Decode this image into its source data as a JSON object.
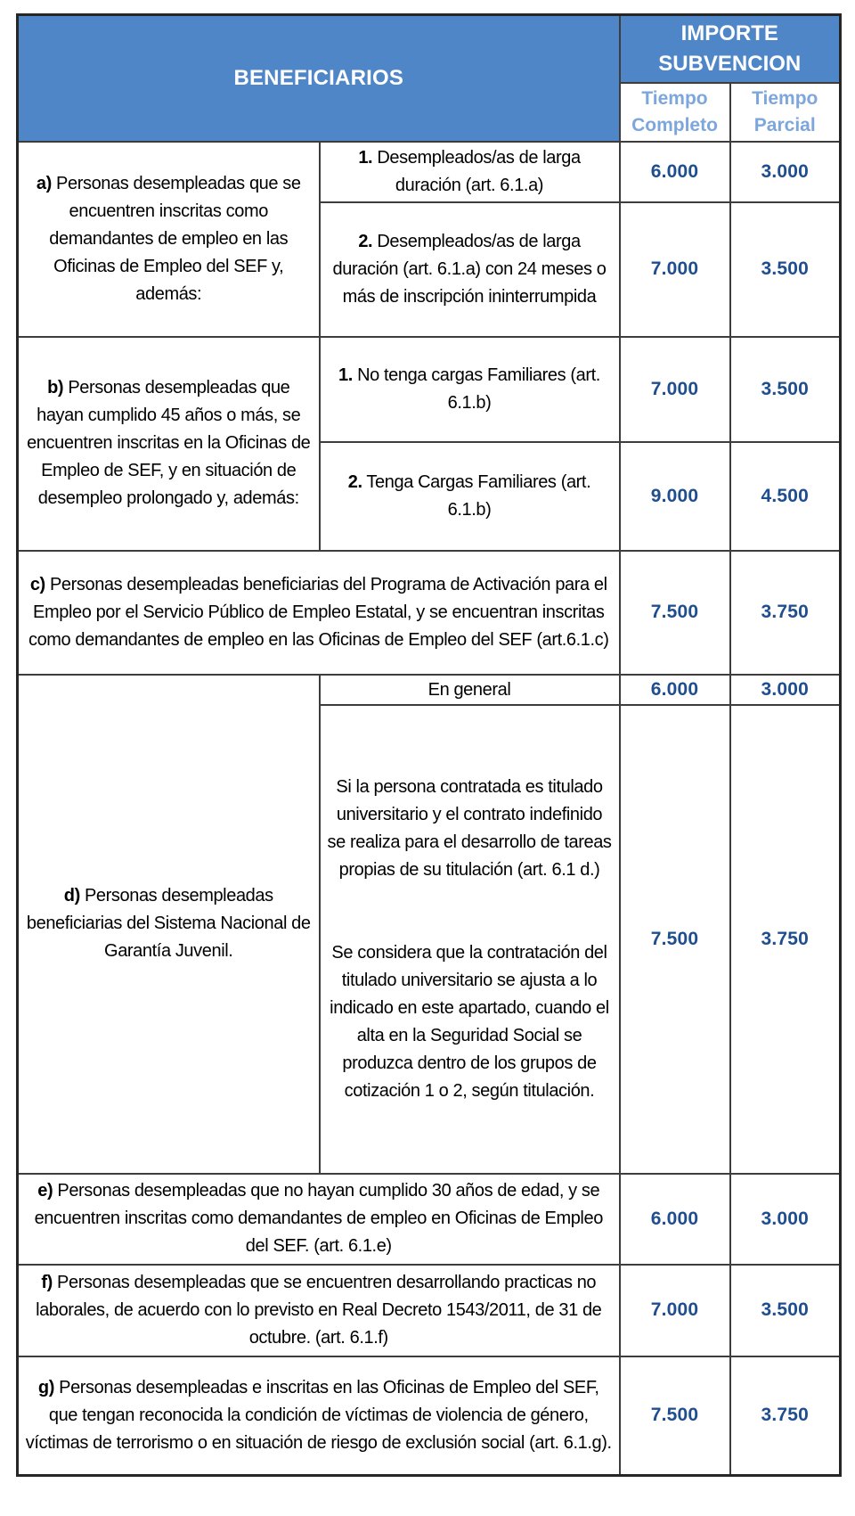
{
  "colors": {
    "header_blue_bg": "#4E86C8",
    "header_text_white": "#ffffff",
    "subheader_text_blue": "#7DA7DC",
    "amount_navy": "#1F4E8F",
    "body_text": "#000000",
    "border_outer": "#262626",
    "border_inner": "#3d3d3d"
  },
  "header": {
    "beneficiarios": "BENEFICIARIOS",
    "importe_subvencion": "IMPORTE SUBVENCION",
    "tiempo_completo": "Tiempo Completo",
    "tiempo_parcial": "Tiempo Parcial"
  },
  "sections": {
    "a": {
      "label": "a)",
      "text": " Personas desempleadas que se encuentren inscritas como demandantes de empleo en las Oficinas de Empleo del SEF y, además:",
      "items": [
        {
          "num": "1.",
          "text": " Desempleados/as de larga duración (art. 6.1.a)",
          "completo": "6.000",
          "parcial": "3.000"
        },
        {
          "num": "2.",
          "text": " Desempleados/as de larga duración (art. 6.1.a) con 24 meses o más de inscripción ininterrumpida",
          "completo": "7.000",
          "parcial": "3.500"
        }
      ]
    },
    "b": {
      "label": "b)",
      "text": " Personas desempleadas que hayan cumplido 45 años o más, se encuentren inscritas en la Oficinas de Empleo de SEF, y en situación de desempleo prolongado y, además:",
      "items": [
        {
          "num": "1.",
          "text": " No tenga cargas Familiares (art. 6.1.b)",
          "completo": "7.000",
          "parcial": "3.500"
        },
        {
          "num": "2.",
          "text": " Tenga Cargas Familiares  (art. 6.1.b)",
          "completo": "9.000",
          "parcial": "4.500"
        }
      ]
    },
    "c": {
      "label": "c)",
      "text": " Personas desempleadas beneficiarias del Programa de Activación para el Empleo por el Servicio Público de Empleo Estatal, y se encuentran inscritas como demandantes de empleo en las Oficinas de Empleo del SEF (art.6.1.c)",
      "completo": "7.500",
      "parcial": "3.750"
    },
    "d": {
      "label": "d)",
      "text": " Personas desempleadas beneficiarias del Sistema Nacional de Garantía Juvenil.",
      "items": [
        {
          "text": "En general",
          "completo": "6.000",
          "parcial": "3.000"
        },
        {
          "paragraphs": [
            "Si la persona contratada es titulado universitario y el contrato indefinido se realiza para el desarrollo de tareas propias de su titulación (art. 6.1 d.)",
            "Se considera que la contratación del titulado universitario se ajusta a lo indicado en este apartado, cuando el alta en la Seguridad Social se produzca dentro de los grupos de cotización 1 o 2, según titulación."
          ],
          "completo": "7.500",
          "parcial": "3.750"
        }
      ]
    },
    "e": {
      "label": "e)",
      "text": " Personas desempleadas que no hayan cumplido 30 años de edad, y se encuentren inscritas como demandantes de empleo en Oficinas de Empleo del SEF. (art. 6.1.e)",
      "completo": "6.000",
      "parcial": "3.000"
    },
    "f": {
      "label": "f)",
      "text": " Personas desempleadas que se encuentren desarrollando practicas no laborales, de acuerdo con lo previsto en Real Decreto 1543/2011, de 31 de octubre. (art. 6.1.f)",
      "completo": "7.000",
      "parcial": "3.500"
    },
    "g": {
      "label": "g)",
      "text": " Personas desempleadas e inscritas en las Oficinas de Empleo del SEF, que tengan reconocida la condición de víctimas de violencia de género, víctimas de terrorismo o en situación de riesgo de exclusión social (art. 6.1.g).",
      "completo": "7.500",
      "parcial": "3.750"
    }
  }
}
